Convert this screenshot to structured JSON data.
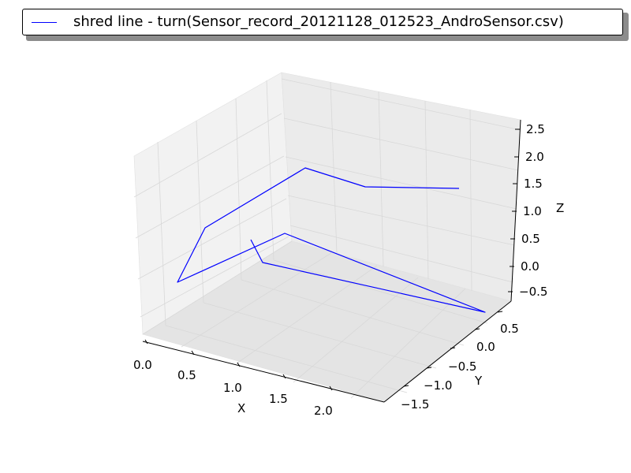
{
  "legend": {
    "label": "shred line - turn(Sensor_record_20121128_012523_AndroSensor.csv)"
  },
  "chart_data": {
    "type": "line3d",
    "series": [
      {
        "name": "shred line - turn(Sensor_record_20121128_012523_AndroSensor.csv)",
        "color": "#0000ff"
      }
    ],
    "x_ticks": [
      "0.0",
      "0.5",
      "1.0",
      "1.5",
      "2.0"
    ],
    "y_ticks": [
      "−1.5",
      "−1.0",
      "−0.5",
      "0.0",
      "0.5"
    ],
    "z_ticks": [
      "−0.5",
      "0.0",
      "0.5",
      "1.0",
      "1.5",
      "2.0",
      "2.5"
    ],
    "xlabel": "X",
    "ylabel": "Y",
    "zlabel": "Z",
    "grid": true,
    "legend_position": "top"
  }
}
